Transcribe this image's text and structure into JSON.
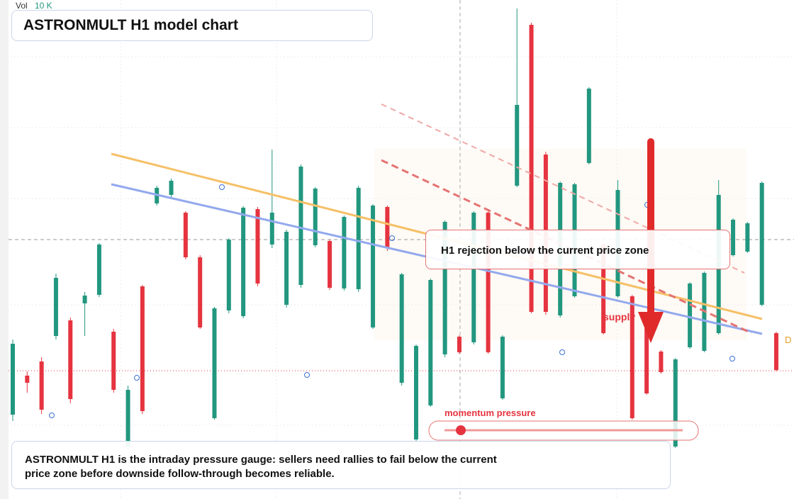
{
  "chart_data": {
    "type": "candlestick",
    "title": "ASTRONMULT H1 model chart",
    "volume_label": "Vol",
    "volume_scale": "10 K",
    "annotation": "H1 rejection below the current price zone",
    "zone_label": "supply",
    "slider_label": "momentum pressure",
    "edge_label": "D",
    "caption": "ASTRONMULT H1 is the intraday pressure gauge: sellers need rallies to fail below the current price zone before downside follow-through becomes reliable.",
    "up_color": "#22977f",
    "down_color": "#e5343f",
    "ylim": [
      0,
      704
    ],
    "open": [
      119,
      174,
      194,
      230,
      252,
      276,
      288,
      236,
      74,
      300,
      417,
      429,
      404,
      341,
      114,
      266,
      258,
      409,
      359,
      274,
      302,
      358,
      364,
      297,
      296,
      242,
      412,
      164,
      84,
      132,
      204,
      229,
      221,
      404,
      142,
      442,
      669,
      486,
      259,
      286,
      474,
      359,
      286,
      286,
      249,
      208,
      74,
      214,
      209,
      234,
      344,
      349,
      274,
      234
    ],
    "close": [
      219,
      164,
      126,
      312,
      141,
      287,
      359,
      154,
      154,
      124,
      439,
      449,
      341,
      242,
      269,
      366,
      411,
      304,
      404,
      377,
      469,
      438,
      298,
      398,
      439,
      414,
      354,
      317,
      216,
      309,
      391,
      207,
      404,
      207,
      229,
      556,
      264,
      264,
      446,
      444,
      579,
      234,
      436,
      114,
      149,
      179,
      197,
      304,
      319,
      429,
      394,
      389,
      446,
      182
    ],
    "high": [
      225,
      180,
      200,
      318,
      256,
      292,
      361,
      240,
      160,
      302,
      442,
      452,
      406,
      344,
      271,
      368,
      413,
      412,
      493,
      380,
      472,
      440,
      366,
      400,
      442,
      416,
      414,
      319,
      218,
      311,
      393,
      231,
      406,
      406,
      231,
      692,
      672,
      490,
      448,
      446,
      581,
      362,
      450,
      288,
      251,
      210,
      199,
      306,
      321,
      450,
      396,
      391,
      448,
      236
    ],
    "low": [
      110,
      150,
      120,
      225,
      135,
      230,
      285,
      150,
      70,
      120,
      414,
      426,
      338,
      240,
      112,
      262,
      255,
      300,
      354,
      270,
      298,
      355,
      295,
      294,
      292,
      240,
      350,
      160,
      80,
      130,
      200,
      205,
      218,
      205,
      140,
      440,
      262,
      260,
      256,
      284,
      472,
      232,
      284,
      112,
      147,
      177,
      72,
      212,
      207,
      232,
      342,
      347,
      272,
      180
    ]
  }
}
